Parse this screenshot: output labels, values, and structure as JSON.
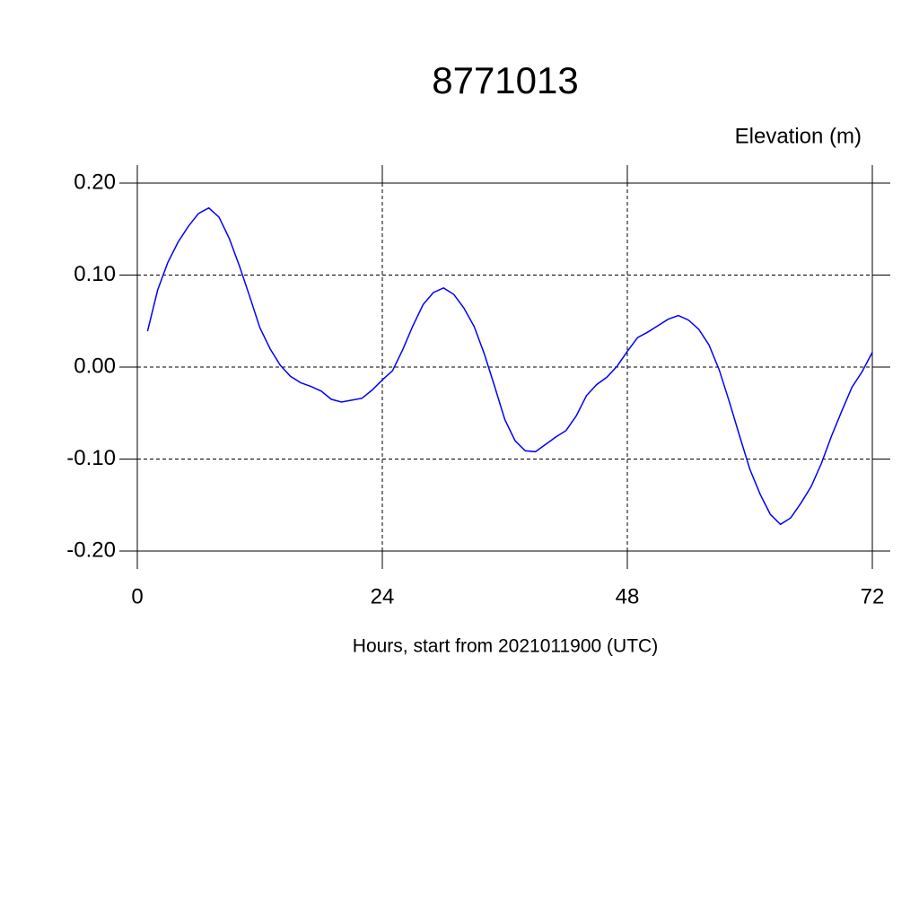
{
  "chart_data": {
    "type": "line",
    "title": "8771013",
    "subtitle": "Elevation (m)",
    "x_label": "Hours, start from 2021011900 (UTC)",
    "x": [
      1,
      2,
      3,
      4,
      5,
      6,
      7,
      8,
      9,
      10,
      11,
      12,
      13,
      14,
      15,
      16,
      17,
      18,
      19,
      20,
      21,
      22,
      23,
      24,
      25,
      26,
      27,
      28,
      29,
      30,
      31,
      32,
      33,
      34,
      35,
      36,
      37,
      38,
      39,
      40,
      41,
      42,
      43,
      44,
      45,
      46,
      47,
      48,
      49,
      50,
      51,
      52,
      53,
      54,
      55,
      56,
      57,
      58,
      59,
      60,
      61,
      62,
      63,
      64,
      65,
      66,
      67,
      68,
      69,
      70,
      71,
      72
    ],
    "series": [
      {
        "color": "#0000ff",
        "values": [
          0.039,
          0.084,
          0.114,
          0.136,
          0.153,
          0.167,
          0.173,
          0.163,
          0.14,
          0.11,
          0.077,
          0.043,
          0.02,
          0.002,
          -0.01,
          -0.017,
          -0.021,
          -0.026,
          -0.035,
          -0.038,
          -0.036,
          -0.034,
          -0.025,
          -0.014,
          -0.004,
          0.019,
          0.045,
          0.068,
          0.081,
          0.086,
          0.079,
          0.064,
          0.044,
          0.014,
          -0.021,
          -0.057,
          -0.08,
          -0.091,
          -0.092,
          -0.084,
          -0.076,
          -0.069,
          -0.053,
          -0.031,
          -0.019,
          -0.011,
          0.001,
          0.017,
          0.032,
          0.038,
          0.045,
          0.052,
          0.056,
          0.051,
          0.041,
          0.024,
          -0.003,
          -0.038,
          -0.075,
          -0.111,
          -0.138,
          -0.16,
          -0.171,
          -0.164,
          -0.148,
          -0.13,
          -0.105,
          -0.075,
          -0.048,
          -0.022,
          -0.005,
          0.016
        ]
      }
    ],
    "xlim": [
      0,
      72
    ],
    "xticks": [
      0,
      24,
      48,
      72
    ],
    "ylim": [
      -0.2,
      0.2
    ],
    "yticks": [
      {
        "value": 0.2,
        "label": "0.20"
      },
      {
        "value": 0.1,
        "label": "0.10"
      },
      {
        "value": 0,
        "label": "0.00"
      },
      {
        "value": -0.1,
        "label": "-0.10"
      },
      {
        "value": -0.2,
        "label": "-0.20"
      }
    ],
    "grid": true
  }
}
